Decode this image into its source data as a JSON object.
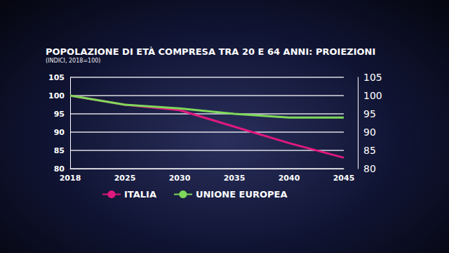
{
  "chart_data": {
    "type": "line",
    "title": "POPOLAZIONE DI ETÀ COMPRESA TRA 20 E 64 ANNI: PROIEZIONI",
    "subtitle": "(INDICI, 2018=100)",
    "categories": [
      "2018",
      "2025",
      "2030",
      "2035",
      "2040",
      "2045"
    ],
    "series": [
      {
        "name": "ITALIA",
        "color": "#e0197d",
        "values": [
          100,
          97.5,
          96,
          91.5,
          87,
          83
        ]
      },
      {
        "name": "UNIONE EUROPEA",
        "color": "#7fd85a",
        "values": [
          100,
          97.5,
          96.5,
          95,
          94,
          94
        ]
      }
    ],
    "ylim": [
      80,
      105
    ],
    "yticks": [
      80,
      85,
      90,
      95,
      100,
      105
    ],
    "y2lim": [
      80,
      105
    ],
    "y2ticks": [
      80,
      85,
      90,
      95,
      100,
      105
    ],
    "grid": true,
    "legend": "bottom"
  }
}
